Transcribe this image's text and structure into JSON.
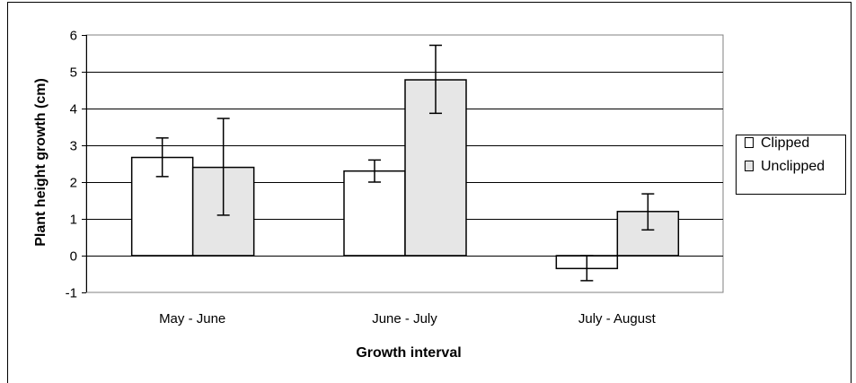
{
  "chart_data": {
    "type": "bar",
    "title": "",
    "xlabel": "Growth interval",
    "ylabel": "Plant height growth (cm)",
    "ylim": [
      -1,
      6
    ],
    "yticks": [
      -1,
      0,
      1,
      2,
      3,
      4,
      5,
      6
    ],
    "grid": true,
    "legend_position": "right",
    "categories": [
      "May - June",
      "June - July",
      "July - August"
    ],
    "series": [
      {
        "name": "Clipped",
        "color": "#ffffff",
        "values": [
          2.67,
          2.3,
          -0.35
        ],
        "error_low": [
          2.15,
          2.0,
          -0.68
        ],
        "error_high": [
          3.2,
          2.6,
          0.0
        ]
      },
      {
        "name": "Unclipped",
        "color": "#e6e6e6",
        "values": [
          2.4,
          4.78,
          1.2
        ],
        "error_low": [
          1.1,
          3.87,
          0.7
        ],
        "error_high": [
          3.73,
          5.72,
          1.68
        ]
      }
    ]
  }
}
